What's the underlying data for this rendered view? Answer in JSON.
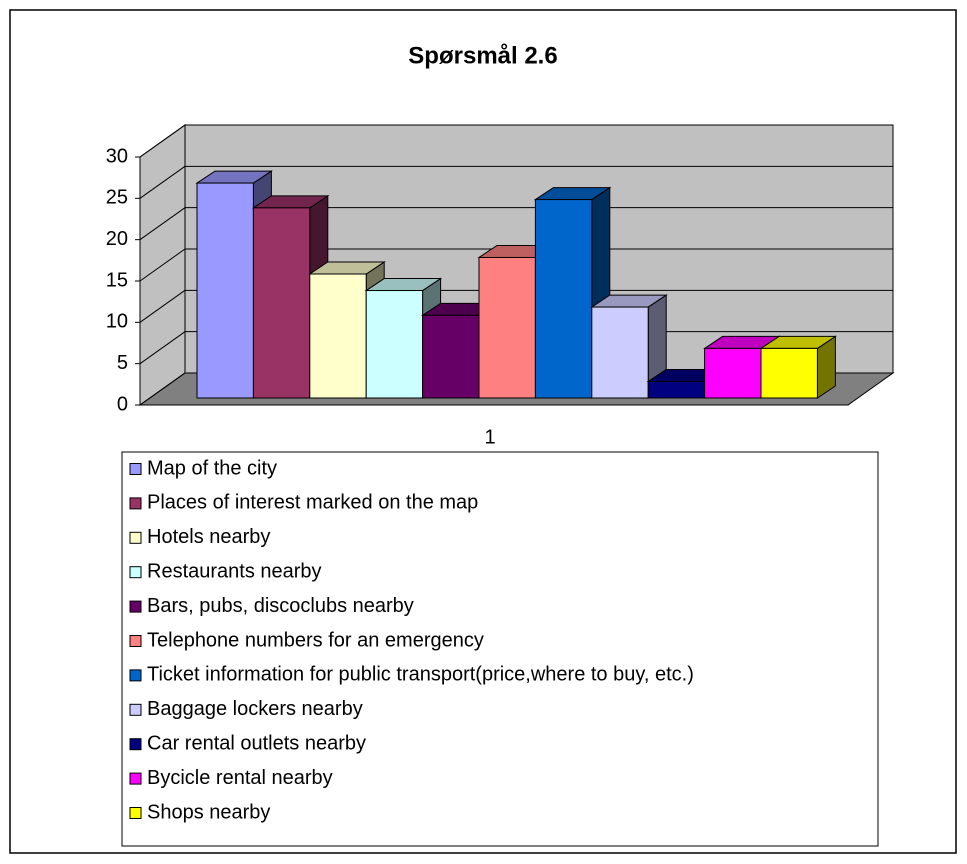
{
  "chart_data": {
    "type": "bar3d",
    "title": "Spørsmål 2.6",
    "categories": [
      "1"
    ],
    "series": [
      {
        "name": "Map of the city",
        "color": "#9999ff",
        "values": [
          26
        ]
      },
      {
        "name": "Places of interest marked on the map",
        "color": "#993366",
        "values": [
          23
        ]
      },
      {
        "name": "Hotels nearby",
        "color": "#ffffcc",
        "values": [
          15
        ]
      },
      {
        "name": "Restaurants nearby",
        "color": "#ccffff",
        "values": [
          13
        ]
      },
      {
        "name": "Bars, pubs, discoclubs nearby",
        "color": "#660066",
        "values": [
          10
        ]
      },
      {
        "name": "Telephone numbers for an emergency",
        "color": "#ff8080",
        "values": [
          17
        ]
      },
      {
        "name": "Ticket information for public transport(price,where to buy, etc.)",
        "color": "#0066cc",
        "values": [
          24
        ]
      },
      {
        "name": "Baggage lockers nearby",
        "color": "#ccccff",
        "values": [
          11
        ]
      },
      {
        "name": "Car rental outlets nearby",
        "color": "#000080",
        "values": [
          2
        ]
      },
      {
        "name": "Bycicle rental nearby",
        "color": "#ff00ff",
        "values": [
          6
        ]
      },
      {
        "name": "Shops nearby",
        "color": "#ffff00",
        "values": [
          6
        ]
      }
    ],
    "ylim": [
      0,
      30
    ],
    "yticks": [
      0,
      5,
      10,
      15,
      20,
      25,
      30
    ],
    "grid": true,
    "legend": "bottom"
  }
}
